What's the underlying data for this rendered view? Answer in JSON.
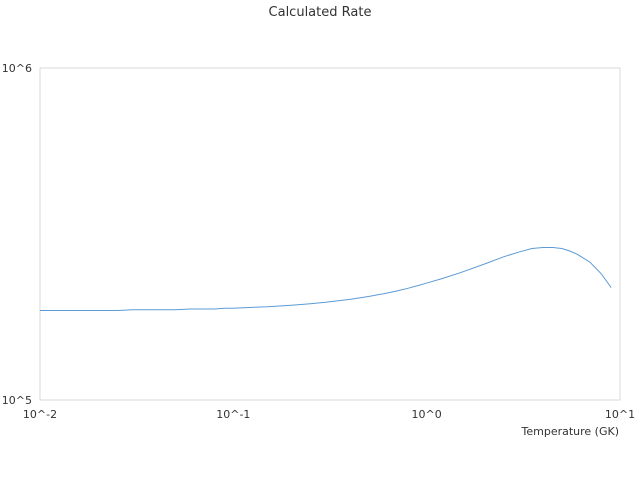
{
  "chart_data": {
    "type": "line",
    "title": "Calculated Rate",
    "xlabel": "Temperature (GK)",
    "ylabel": "",
    "xscale": "log",
    "yscale": "log",
    "xlim": [
      0.01,
      10
    ],
    "ylim": [
      100000,
      1000000
    ],
    "grid": false,
    "legend": "none",
    "x_ticks": [
      "10^-2",
      "10^-1",
      "10^0",
      "10^1"
    ],
    "y_ticks": [
      "10^5",
      "10^6"
    ],
    "series_color": "#5b9bd5",
    "series": [
      {
        "x": [
          0.01,
          0.015,
          0.02,
          0.025,
          0.03,
          0.04,
          0.05,
          0.06,
          0.07,
          0.08,
          0.09,
          0.1,
          0.12,
          0.15,
          0.2,
          0.25,
          0.3,
          0.4,
          0.5,
          0.6,
          0.7,
          0.8,
          0.9,
          1.0,
          1.2,
          1.5,
          2.0,
          2.5,
          3.0,
          3.5,
          4.0,
          4.5,
          5.0,
          5.5,
          6.0,
          7.0,
          8.0,
          9.0
        ],
        "y": [
          186000,
          186000,
          186000,
          186000,
          187000,
          187000,
          187000,
          188000,
          188000,
          188000,
          189000,
          189000,
          190000,
          191000,
          193000,
          195000,
          197000,
          201000,
          205000,
          209000,
          213000,
          217000,
          221000,
          225000,
          232000,
          242000,
          257000,
          270000,
          279000,
          286000,
          288000,
          288000,
          286000,
          281000,
          275000,
          260000,
          240000,
          218000
        ]
      }
    ]
  }
}
